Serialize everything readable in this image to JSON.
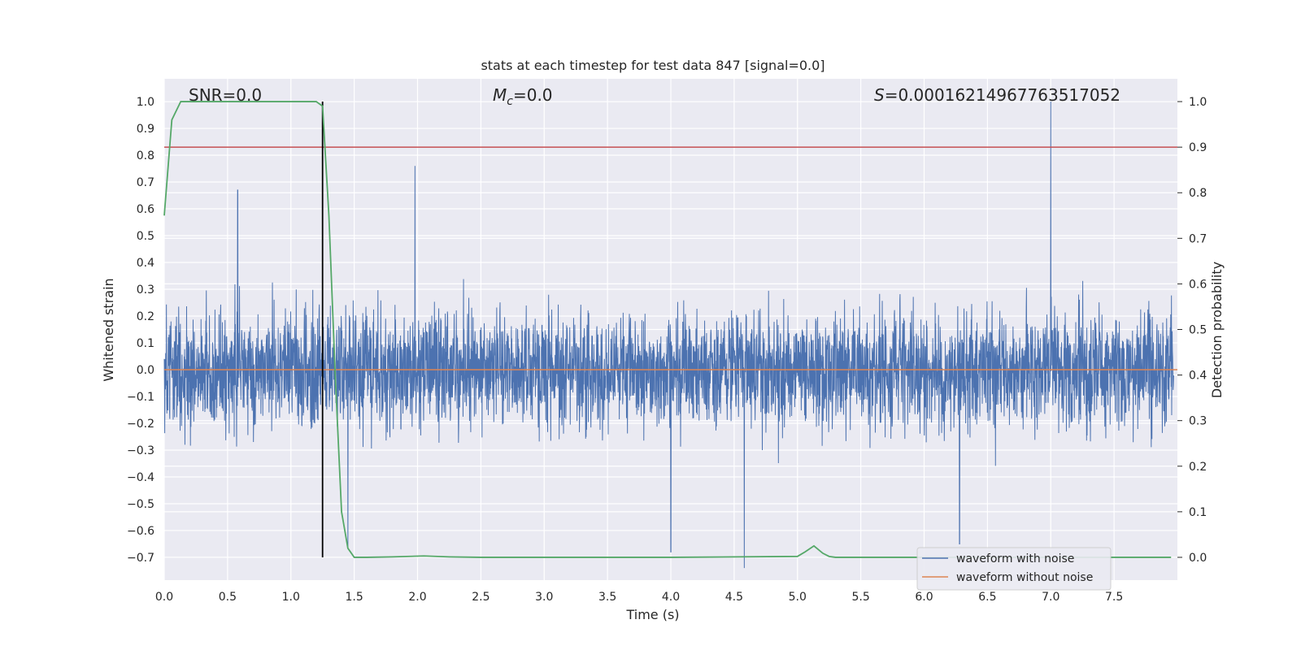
{
  "chart_data": {
    "type": "line",
    "title": "stats at each timestep for test data 847 [signal=0.0]",
    "xlabel": "Time (s)",
    "ylabel": "Whitened strain",
    "y2label": "Detection probability",
    "xlim": [
      0.0,
      8.0
    ],
    "ylim": [
      -0.785,
      1.085
    ],
    "y2lim": [
      -0.05,
      1.05
    ],
    "xticks": [
      "0.0",
      "0.5",
      "1.0",
      "1.5",
      "2.0",
      "2.5",
      "3.0",
      "3.5",
      "4.0",
      "4.5",
      "5.0",
      "5.5",
      "6.0",
      "6.5",
      "7.0",
      "7.5"
    ],
    "yticks": [
      "1.0",
      "0.9",
      "0.8",
      "0.7",
      "0.6",
      "0.5",
      "0.4",
      "0.3",
      "0.2",
      "0.1",
      "0.0",
      "−0.1",
      "−0.2",
      "−0.3",
      "−0.4",
      "−0.5",
      "−0.6",
      "−0.7"
    ],
    "y2ticks": [
      "1.0",
      "0.9",
      "0.8",
      "0.7",
      "0.6",
      "0.5",
      "0.4",
      "0.3",
      "0.2",
      "0.1",
      "0.0"
    ],
    "grid": true,
    "legend_position": "lower-right",
    "annotations": {
      "snr": "SNR=0.0",
      "mc_symbol": "M",
      "mc_sub": "c",
      "mc_value": "=0.0",
      "s_symbol": "S",
      "s_value": "=0.00016214967763517052"
    },
    "series": [
      {
        "name": "waveform with noise",
        "axis": "left",
        "color": "#4c72b0",
        "style": "dense noisy trace",
        "band_typical": [
          -0.2,
          0.15
        ],
        "envelope_extremes": [
          -0.76,
          1.0
        ],
        "peaks": [
          [
            0.58,
            0.67
          ],
          [
            1.98,
            0.76
          ],
          [
            7.0,
            1.0
          ],
          [
            4.0,
            -0.68
          ],
          [
            4.58,
            -0.74
          ],
          [
            6.28,
            -0.65
          ],
          [
            1.45,
            -0.66
          ]
        ]
      },
      {
        "name": "waveform without noise",
        "axis": "left",
        "color": "#dd8452",
        "x": [
          0.0,
          8.0
        ],
        "values": [
          0.0,
          0.0
        ]
      },
      {
        "name": "detection probability",
        "axis": "right",
        "color": "#55a868",
        "x": [
          0.0,
          0.06,
          0.13,
          0.25,
          0.5,
          0.8,
          1.0,
          1.2,
          1.25,
          1.3,
          1.35,
          1.4,
          1.45,
          1.5,
          1.6,
          1.8,
          2.05,
          2.25,
          2.5,
          3.0,
          4.0,
          5.0,
          5.06,
          5.13,
          5.2,
          5.25,
          5.3,
          5.5,
          6.0,
          7.0,
          7.95
        ],
        "values": [
          0.75,
          0.96,
          1.0,
          1.0,
          1.0,
          1.0,
          1.0,
          1.0,
          0.99,
          0.75,
          0.4,
          0.1,
          0.02,
          0.0,
          0.0,
          0.001,
          0.003,
          0.001,
          0.0,
          0.0,
          0.0,
          0.002,
          0.012,
          0.025,
          0.009,
          0.002,
          0.0,
          0.0,
          0.0,
          0.0,
          0.0
        ]
      },
      {
        "name": "threshold",
        "axis": "right",
        "color": "#c44e52",
        "x": [
          0.0,
          8.0
        ],
        "values": [
          0.9,
          0.9
        ]
      },
      {
        "name": "event marker",
        "axis": "right",
        "color": "#000000",
        "x": [
          1.25,
          1.25
        ],
        "values": [
          0.0,
          1.0
        ]
      }
    ]
  }
}
